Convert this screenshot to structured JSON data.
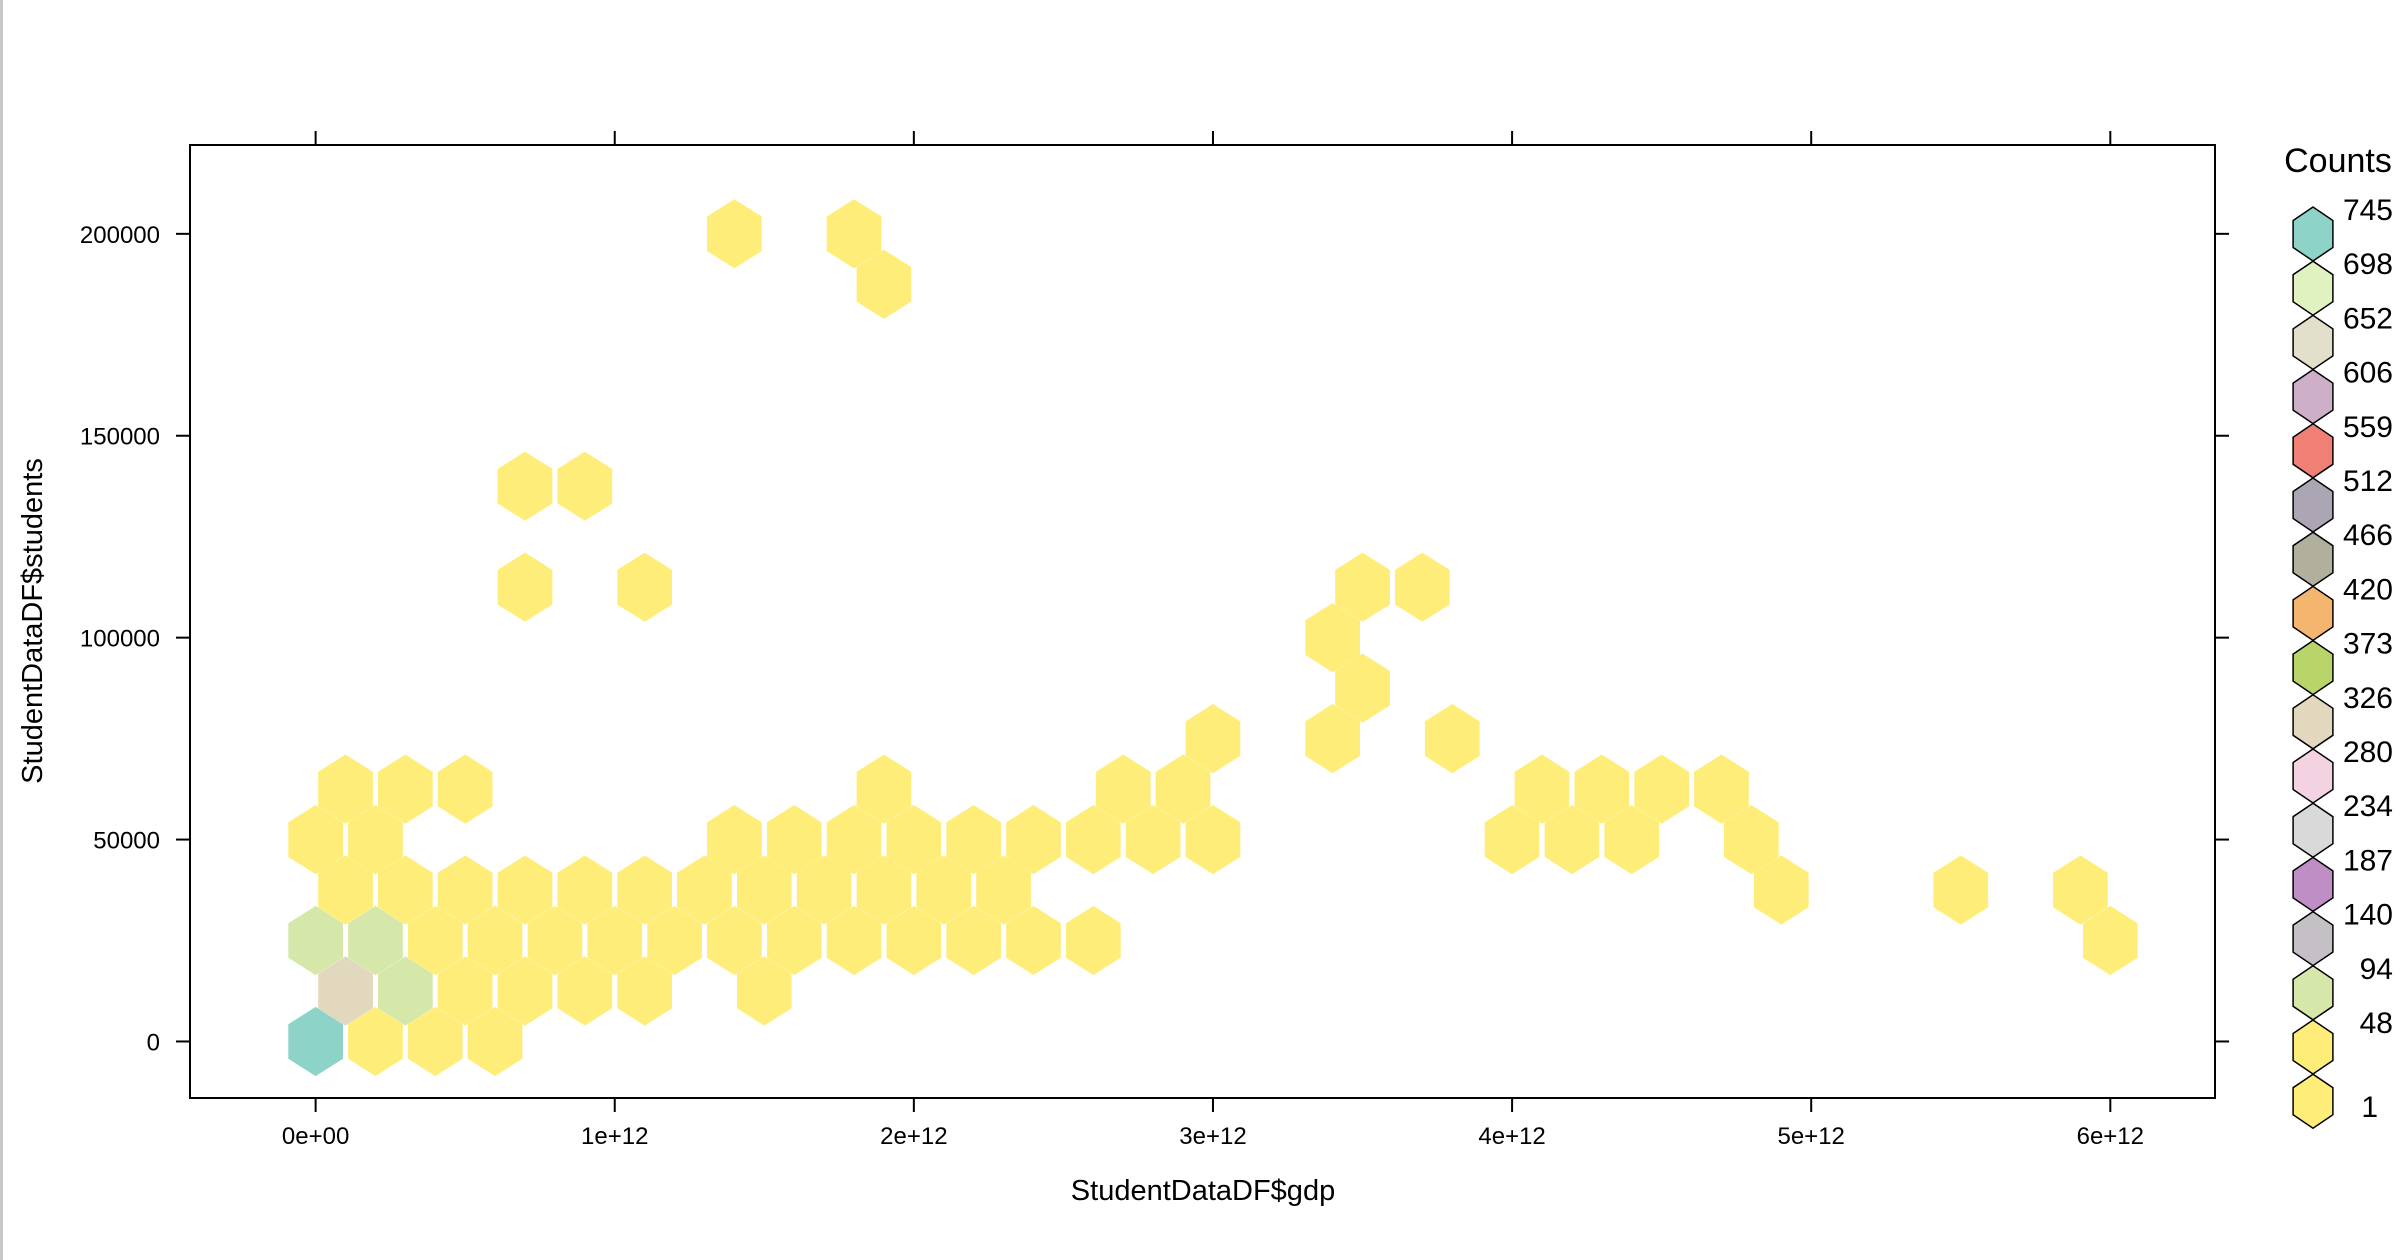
{
  "chart_data": {
    "type": "heatmap",
    "subtype": "hexbin",
    "title": "",
    "xlabel": "StudentDataDF$gdp",
    "ylabel": "StudentDataDF$students",
    "xlim": [
      -420000000000.0,
      6350000000000.0
    ],
    "ylim": [
      -14000,
      222000
    ],
    "x_ticks": [
      0,
      1000000000000.0,
      2000000000000.0,
      3000000000000.0,
      4000000000000.0,
      5000000000000.0,
      6000000000000.0
    ],
    "x_tick_labels": [
      "0e+00",
      "1e+12",
      "2e+12",
      "3e+12",
      "4e+12",
      "5e+12",
      "6e+12"
    ],
    "y_ticks": [
      0,
      50000,
      100000,
      150000,
      200000
    ],
    "y_tick_labels": [
      "0",
      "50000",
      "100000",
      "150000",
      "200000"
    ],
    "grid": false,
    "legend": {
      "title": "Counts",
      "placement": "right",
      "entries": [
        {
          "label": "745",
          "color": "#8DD3C7"
        },
        {
          "label": "698",
          "color": "#E0F2C0"
        },
        {
          "label": "652",
          "color": "#E2DFCB"
        },
        {
          "label": "606",
          "color": "#CDAFC8"
        },
        {
          "label": "559",
          "color": "#F08075"
        },
        {
          "label": "512",
          "color": "#ABA5B4"
        },
        {
          "label": "466",
          "color": "#B0B09C"
        },
        {
          "label": "420",
          "color": "#F4B66E"
        },
        {
          "label": "373",
          "color": "#B9D56A"
        },
        {
          "label": "326",
          "color": "#E2D8BD"
        },
        {
          "label": "280",
          "color": "#F3D2E2"
        },
        {
          "label": "234",
          "color": "#D9D9D9"
        },
        {
          "label": "187",
          "color": "#BF8EC4"
        },
        {
          "label": "140",
          "color": "#C5BFC6"
        },
        {
          "label": "94",
          "color": "#D6E8A9"
        },
        {
          "label": "48",
          "color": "#FFED7A"
        },
        {
          "label": "1",
          "color": "#FFED7A"
        }
      ]
    },
    "hex_bins": [
      {
        "x": 0,
        "y": 0,
        "count": 745
      },
      {
        "x": 100000000000.0,
        "y": 12500,
        "count": 326
      },
      {
        "x": 0,
        "y": 25000,
        "count": 94
      },
      {
        "x": 200000000000.0,
        "y": 25000,
        "count": 94
      },
      {
        "x": 300000000000.0,
        "y": 12500,
        "count": 94
      },
      {
        "x": 200000000000.0,
        "y": 0,
        "count": 1
      },
      {
        "x": 400000000000.0,
        "y": 0,
        "count": 1
      },
      {
        "x": 600000000000.0,
        "y": 0,
        "count": 1
      },
      {
        "x": 400000000000.0,
        "y": 25000,
        "count": 1
      },
      {
        "x": 600000000000.0,
        "y": 25000,
        "count": 1
      },
      {
        "x": 800000000000.0,
        "y": 25000,
        "count": 1
      },
      {
        "x": 1000000000000.0,
        "y": 25000,
        "count": 1
      },
      {
        "x": 1200000000000.0,
        "y": 25000,
        "count": 1
      },
      {
        "x": 1400000000000.0,
        "y": 25000,
        "count": 1
      },
      {
        "x": 1600000000000.0,
        "y": 25000,
        "count": 1
      },
      {
        "x": 1800000000000.0,
        "y": 25000,
        "count": 1
      },
      {
        "x": 2000000000000.0,
        "y": 25000,
        "count": 1
      },
      {
        "x": 2200000000000.0,
        "y": 25000,
        "count": 1
      },
      {
        "x": 2400000000000.0,
        "y": 25000,
        "count": 1
      },
      {
        "x": 2600000000000.0,
        "y": 25000,
        "count": 1
      },
      {
        "x": 500000000000.0,
        "y": 12500,
        "count": 1
      },
      {
        "x": 700000000000.0,
        "y": 12500,
        "count": 1
      },
      {
        "x": 900000000000.0,
        "y": 12500,
        "count": 1
      },
      {
        "x": 1100000000000.0,
        "y": 12500,
        "count": 1
      },
      {
        "x": 1500000000000.0,
        "y": 12500,
        "count": 1
      },
      {
        "x": 100000000000.0,
        "y": 37500,
        "count": 1
      },
      {
        "x": 300000000000.0,
        "y": 37500,
        "count": 1
      },
      {
        "x": 500000000000.0,
        "y": 37500,
        "count": 1
      },
      {
        "x": 700000000000.0,
        "y": 37500,
        "count": 1
      },
      {
        "x": 900000000000.0,
        "y": 37500,
        "count": 1
      },
      {
        "x": 1100000000000.0,
        "y": 37500,
        "count": 1
      },
      {
        "x": 1300000000000.0,
        "y": 37500,
        "count": 1
      },
      {
        "x": 1500000000000.0,
        "y": 37500,
        "count": 1
      },
      {
        "x": 1700000000000.0,
        "y": 37500,
        "count": 1
      },
      {
        "x": 1900000000000.0,
        "y": 37500,
        "count": 1
      },
      {
        "x": 2100000000000.0,
        "y": 37500,
        "count": 1
      },
      {
        "x": 2300000000000.0,
        "y": 37500,
        "count": 1
      },
      {
        "x": 4900000000000.0,
        "y": 37500,
        "count": 1
      },
      {
        "x": 5500000000000.0,
        "y": 37500,
        "count": 1
      },
      {
        "x": 5900000000000.0,
        "y": 37500,
        "count": 1
      },
      {
        "x": 6000000000000.0,
        "y": 25000,
        "count": 1
      },
      {
        "x": 0,
        "y": 50000,
        "count": 1
      },
      {
        "x": 200000000000.0,
        "y": 50000,
        "count": 1
      },
      {
        "x": 1400000000000.0,
        "y": 50000,
        "count": 1
      },
      {
        "x": 1600000000000.0,
        "y": 50000,
        "count": 1
      },
      {
        "x": 1800000000000.0,
        "y": 50000,
        "count": 1
      },
      {
        "x": 2000000000000.0,
        "y": 50000,
        "count": 1
      },
      {
        "x": 2200000000000.0,
        "y": 50000,
        "count": 1
      },
      {
        "x": 2400000000000.0,
        "y": 50000,
        "count": 1
      },
      {
        "x": 2600000000000.0,
        "y": 50000,
        "count": 1
      },
      {
        "x": 2800000000000.0,
        "y": 50000,
        "count": 1
      },
      {
        "x": 3000000000000.0,
        "y": 50000,
        "count": 1
      },
      {
        "x": 4000000000000.0,
        "y": 50000,
        "count": 1
      },
      {
        "x": 4200000000000.0,
        "y": 50000,
        "count": 1
      },
      {
        "x": 4400000000000.0,
        "y": 50000,
        "count": 1
      },
      {
        "x": 4800000000000.0,
        "y": 50000,
        "count": 1
      },
      {
        "x": 100000000000.0,
        "y": 62500,
        "count": 1
      },
      {
        "x": 300000000000.0,
        "y": 62500,
        "count": 1
      },
      {
        "x": 500000000000.0,
        "y": 62500,
        "count": 1
      },
      {
        "x": 1900000000000.0,
        "y": 62500,
        "count": 1
      },
      {
        "x": 2700000000000.0,
        "y": 62500,
        "count": 1
      },
      {
        "x": 2900000000000.0,
        "y": 62500,
        "count": 1
      },
      {
        "x": 4100000000000.0,
        "y": 62500,
        "count": 1
      },
      {
        "x": 4300000000000.0,
        "y": 62500,
        "count": 1
      },
      {
        "x": 4500000000000.0,
        "y": 62500,
        "count": 1
      },
      {
        "x": 4700000000000.0,
        "y": 62500,
        "count": 1
      },
      {
        "x": 3000000000000.0,
        "y": 75000,
        "count": 1
      },
      {
        "x": 3400000000000.0,
        "y": 75000,
        "count": 1
      },
      {
        "x": 3800000000000.0,
        "y": 75000,
        "count": 1
      },
      {
        "x": 3500000000000.0,
        "y": 87500,
        "count": 1
      },
      {
        "x": 3400000000000.0,
        "y": 100000,
        "count": 1
      },
      {
        "x": 3500000000000.0,
        "y": 112500,
        "count": 1
      },
      {
        "x": 3700000000000.0,
        "y": 112500,
        "count": 1
      },
      {
        "x": 700000000000.0,
        "y": 112500,
        "count": 1
      },
      {
        "x": 1100000000000.0,
        "y": 112500,
        "count": 1
      },
      {
        "x": 700000000000.0,
        "y": 137500,
        "count": 1
      },
      {
        "x": 900000000000.0,
        "y": 137500,
        "count": 1
      },
      {
        "x": 1400000000000.0,
        "y": 200000,
        "count": 1
      },
      {
        "x": 1800000000000.0,
        "y": 200000,
        "count": 1
      },
      {
        "x": 1900000000000.0,
        "y": 187500,
        "count": 1
      }
    ]
  }
}
